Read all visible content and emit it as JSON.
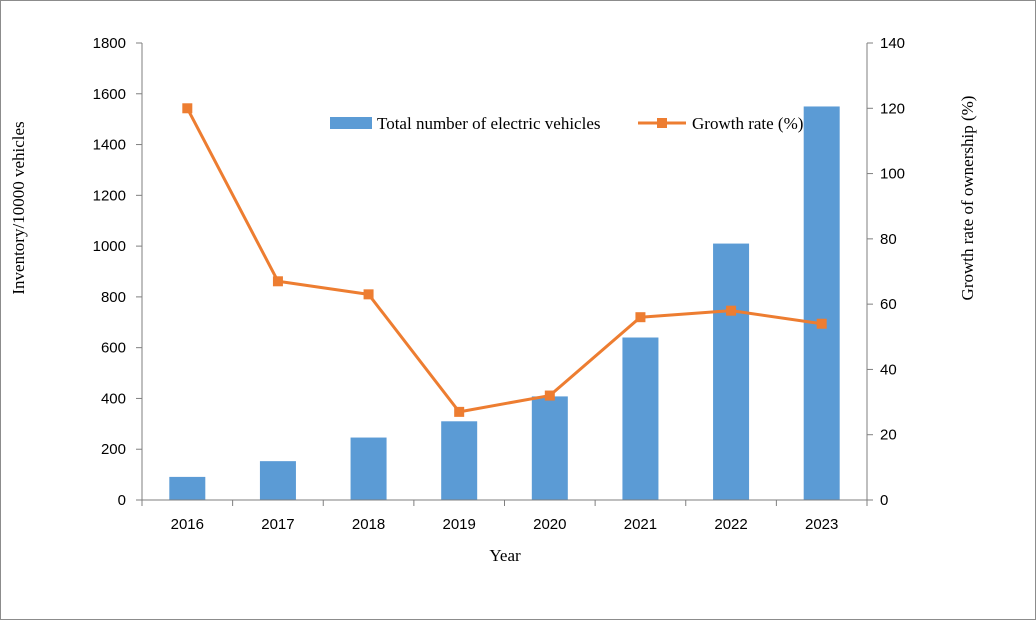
{
  "chart_data": {
    "type": "bar+line",
    "categories": [
      "2016",
      "2017",
      "2018",
      "2019",
      "2020",
      "2021",
      "2022",
      "2023"
    ],
    "series": [
      {
        "name": "Total number of electric vehicles",
        "type": "bar",
        "axis": "left",
        "color": "#5b9bd5",
        "values": [
          91,
          153,
          246,
          310,
          408,
          640,
          1010,
          1550
        ]
      },
      {
        "name": "Growth rate (%)",
        "type": "line",
        "axis": "right",
        "color": "#ed7d31",
        "marker": "square",
        "values": [
          120,
          67,
          63,
          27,
          32,
          56,
          58,
          54
        ]
      }
    ],
    "xlabel": "Year",
    "ylabel_left": "Inventory/10000 vehicles",
    "ylabel_right": "Growth rate of ownership (%)",
    "ylim_left": [
      0,
      1800
    ],
    "yticks_left": [
      0,
      200,
      400,
      600,
      800,
      1000,
      1200,
      1400,
      1600,
      1800
    ],
    "ylim_right": [
      0,
      140
    ],
    "yticks_right": [
      0,
      20,
      40,
      60,
      80,
      100,
      120,
      140
    ],
    "grid": false,
    "legend": "top-center"
  }
}
